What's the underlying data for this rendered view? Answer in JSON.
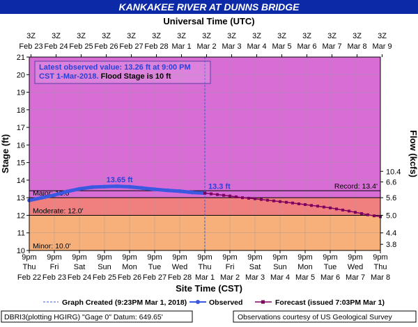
{
  "header": {
    "title": "KANKAKEE RIVER AT DUNNS BRIDGE"
  },
  "top_axis": {
    "title": "Universal Time (UTC)",
    "hour_label": "3Z",
    "date_labels": [
      "Feb 23",
      "Feb 24",
      "Feb 25",
      "Feb 26",
      "Feb 27",
      "Feb 28",
      "Mar 1",
      "Mar 2",
      "Mar 3",
      "Mar 4",
      "Mar 5",
      "Mar 6",
      "Mar 7",
      "Mar 8",
      "Mar 9"
    ]
  },
  "bottom_axis": {
    "title": "Site Time (CST)",
    "time_label": "9pm",
    "day_labels": [
      "Thu",
      "Fri",
      "Sat",
      "Sun",
      "Mon",
      "Tue",
      "Wed",
      "Thu",
      "Fri",
      "Sat",
      "Sun",
      "Mon",
      "Tue",
      "Wed",
      "Thu"
    ],
    "date_labels": [
      "Feb 22",
      "Feb 23",
      "Feb 24",
      "Feb 25",
      "Feb 26",
      "Feb 27",
      "Feb 28",
      "Mar 1",
      "Mar 2",
      "Mar 3",
      "Mar 4",
      "Mar 5",
      "Mar 6",
      "Mar 7",
      "Mar 8"
    ]
  },
  "annotation": {
    "line1": "Latest observed value: 13.26 ft at 9:00 PM",
    "line2_part1": "CST 1-Mar-2018.",
    "line2_part2": " Flood Stage is 10 ft"
  },
  "legend": {
    "graph_created": "Graph Created (9:23PM Mar 1, 2018)",
    "observed": "Observed",
    "forecast": "Forecast (issued 7:03PM Mar 1)"
  },
  "footer": {
    "left": "DBRI3(plotting HGIRG) \"Gage 0\" Datum: 649.65'",
    "right": "Observations courtesy of US Geological Survey"
  },
  "colors": {
    "title_bg": "#0c2aa8",
    "major_zone": "#d86dd6",
    "moderate_zone": "#f08080",
    "minor_zone": "#f7b07a",
    "observed": "#3a58e0",
    "forecast": "#800060"
  },
  "chart_data": {
    "type": "line",
    "xlabel": "Site Time (CST)",
    "ylabel": "Stage (ft)",
    "y2label": "Flow (kcfs)",
    "ylim": [
      10,
      21
    ],
    "yticks": [
      10,
      11,
      12,
      13,
      14,
      15,
      16,
      17,
      18,
      19,
      20,
      21
    ],
    "xlim": [
      0,
      14
    ],
    "x_unit": "days after 9pm Thu Feb 22",
    "grid": true,
    "flow_ticks": [
      {
        "stage": 10.35,
        "label": "3.8"
      },
      {
        "stage": 11.0,
        "label": "4.4"
      },
      {
        "stage": 12.0,
        "label": "5.0"
      },
      {
        "stage": 13.0,
        "label": "5.6"
      },
      {
        "stage": 13.9,
        "label": "6.6"
      },
      {
        "stage": 14.5,
        "label": "10.4"
      }
    ],
    "flood_categories": [
      {
        "name": "Major",
        "label": "Major: 13.0'",
        "stage": 13.0
      },
      {
        "name": "Moderate",
        "label": "Moderate: 12.0'",
        "stage": 12.0
      },
      {
        "name": "Minor",
        "label": "Minor: 10.0'",
        "stage": 10.0
      }
    ],
    "record": {
      "label": "Record: 13.4'",
      "stage": 13.4
    },
    "peak_label": {
      "text": "13.65 ft",
      "x": 3.6,
      "y": 13.65
    },
    "latest_label": {
      "text": "13.3 ft",
      "x": 7.0,
      "y": 13.3
    },
    "graph_created_x": 7.0,
    "series": [
      {
        "name": "Observed",
        "x": [
          0,
          0.5,
          1,
          1.5,
          2,
          2.5,
          3,
          3.5,
          4,
          4.5,
          5,
          5.5,
          6,
          6.5,
          7
        ],
        "y": [
          12.85,
          13.0,
          13.15,
          13.35,
          13.5,
          13.6,
          13.63,
          13.65,
          13.62,
          13.55,
          13.48,
          13.42,
          13.37,
          13.3,
          13.26
        ]
      },
      {
        "name": "Forecast",
        "x": [
          7,
          7.25,
          7.5,
          7.75,
          8,
          8.25,
          8.5,
          8.75,
          9,
          9.25,
          9.5,
          9.75,
          10,
          10.25,
          10.5,
          10.75,
          11,
          11.25,
          11.5,
          11.75,
          12,
          12.25,
          12.5,
          12.75,
          13,
          13.25,
          13.5,
          13.75,
          14
        ],
        "y": [
          13.26,
          13.22,
          13.18,
          13.14,
          13.1,
          13.05,
          13.0,
          12.97,
          12.94,
          12.9,
          12.86,
          12.82,
          12.78,
          12.74,
          12.7,
          12.65,
          12.61,
          12.56,
          12.52,
          12.47,
          12.42,
          12.36,
          12.3,
          12.24,
          12.17,
          12.1,
          12.03,
          11.97,
          11.92
        ]
      }
    ]
  }
}
